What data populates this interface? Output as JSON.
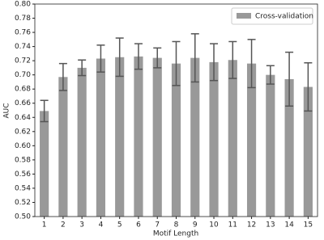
{
  "chart_data": {
    "type": "bar",
    "x_label": "Motif Length",
    "y_label": "AUC",
    "categories": [
      "1",
      "2",
      "3",
      "4",
      "5",
      "6",
      "7",
      "8",
      "9",
      "10",
      "11",
      "12",
      "13",
      "14",
      "15"
    ],
    "series": [
      {
        "name": "Cross-validation",
        "color": "#999999",
        "values": [
          0.649,
          0.697,
          0.71,
          0.723,
          0.725,
          0.726,
          0.724,
          0.716,
          0.724,
          0.718,
          0.721,
          0.716,
          0.7,
          0.694,
          0.683
        ],
        "errors": [
          0.015,
          0.019,
          0.011,
          0.019,
          0.027,
          0.018,
          0.014,
          0.031,
          0.034,
          0.026,
          0.026,
          0.034,
          0.013,
          0.038,
          0.034
        ],
        "error_color": "#555555"
      }
    ],
    "ylim": [
      0.5,
      0.8
    ],
    "yticks": [
      {
        "value": 0.5,
        "label": "0.50"
      },
      {
        "value": 0.52,
        "label": "0.52"
      },
      {
        "value": 0.54,
        "label": "0.54"
      },
      {
        "value": 0.56,
        "label": "0.56"
      },
      {
        "value": 0.58,
        "label": "0.58"
      },
      {
        "value": 0.6,
        "label": "0.60"
      },
      {
        "value": 0.62,
        "label": "0.62"
      },
      {
        "value": 0.64,
        "label": "0.64"
      },
      {
        "value": 0.66,
        "label": "0.66"
      },
      {
        "value": 0.68,
        "label": "0.68"
      },
      {
        "value": 0.7,
        "label": "0.70"
      },
      {
        "value": 0.72,
        "label": "0.72"
      },
      {
        "value": 0.74,
        "label": "0.74"
      },
      {
        "value": 0.76,
        "label": "0.76"
      },
      {
        "value": 0.78,
        "label": "0.78"
      },
      {
        "value": 0.8,
        "label": "0.80"
      }
    ],
    "legend_position": "upper right"
  }
}
